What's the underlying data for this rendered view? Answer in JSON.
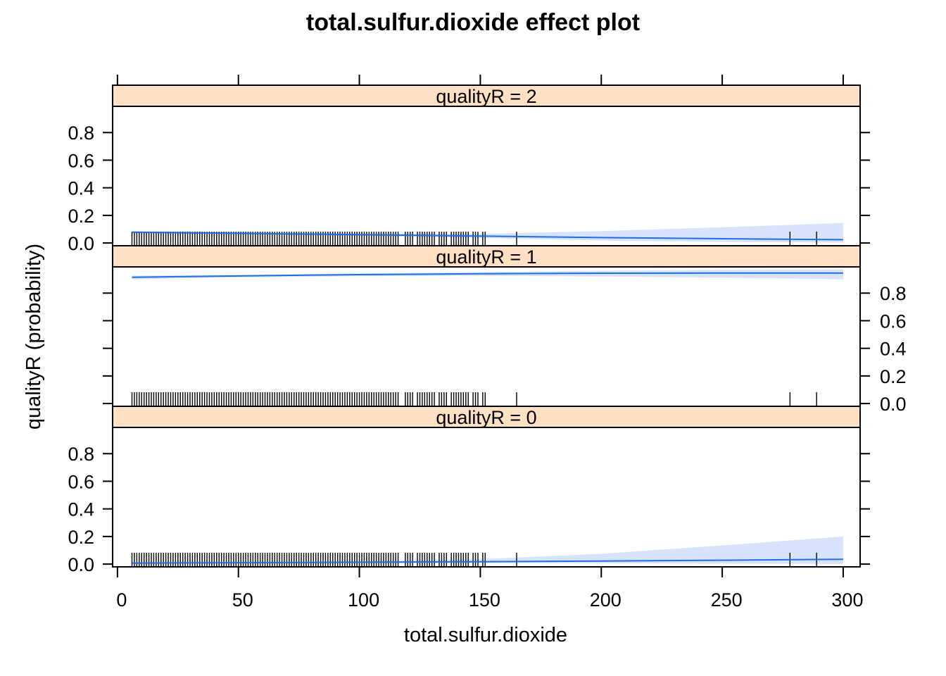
{
  "chart_data": {
    "type": "line",
    "title": "total.sulfur.dioxide effect plot",
    "xlabel": "total.sulfur.dioxide",
    "ylabel": "qualityR (probability)",
    "xlim": [
      -2,
      307
    ],
    "ylim": [
      -0.02,
      0.99
    ],
    "x_ticks": [
      0,
      50,
      100,
      150,
      200,
      250,
      300
    ],
    "x_tick_labels": [
      "0",
      "50",
      "100",
      "150",
      "200",
      "250",
      "300"
    ],
    "y_ticks": [
      0,
      0.2,
      0.4,
      0.6,
      0.8
    ],
    "y_tick_labels": [
      "0.0",
      "0.2",
      "0.4",
      "0.6",
      "0.8"
    ],
    "colors": {
      "line": "#1f6fe0",
      "band": "#d6e3fb",
      "strip": "#ffe0c4",
      "axis": "#000000"
    },
    "panels": [
      {
        "strip": "qualityR = 2",
        "y_label_side": "left",
        "x": [
          6,
          50,
          100,
          150,
          200,
          250,
          300
        ],
        "fit": [
          0.078,
          0.07,
          0.06,
          0.05,
          0.039,
          0.031,
          0.024
        ],
        "lower": [
          0.07,
          0.064,
          0.052,
          0.036,
          0.018,
          0.008,
          0.003
        ],
        "upper": [
          0.087,
          0.077,
          0.068,
          0.066,
          0.086,
          0.114,
          0.144
        ]
      },
      {
        "strip": "qualityR = 1",
        "y_label_side": "right",
        "x": [
          6,
          50,
          100,
          150,
          200,
          250,
          300
        ],
        "fit": [
          0.915,
          0.924,
          0.934,
          0.94,
          0.944,
          0.945,
          0.945
        ],
        "lower": [
          0.9,
          0.914,
          0.922,
          0.925,
          0.92,
          0.912,
          0.9
        ],
        "upper": [
          0.927,
          0.932,
          0.942,
          0.952,
          0.962,
          0.968,
          0.972
        ]
      },
      {
        "strip": "qualityR = 0",
        "y_label_side": "left",
        "x": [
          6,
          50,
          100,
          150,
          200,
          250,
          300
        ],
        "fit": [
          0.007,
          0.01,
          0.013,
          0.017,
          0.022,
          0.028,
          0.035
        ],
        "lower": [
          0.004,
          0.006,
          0.008,
          0.009,
          0.006,
          0.003,
          0.001
        ],
        "upper": [
          0.011,
          0.014,
          0.02,
          0.035,
          0.075,
          0.135,
          0.2
        ]
      }
    ],
    "rug": [
      6,
      7,
      8,
      9,
      10,
      11,
      12,
      13,
      14,
      15,
      16,
      17,
      18,
      19,
      20,
      21,
      22,
      23,
      24,
      25,
      26,
      27,
      28,
      29,
      30,
      31,
      32,
      33,
      34,
      35,
      36,
      37,
      38,
      39,
      40,
      41,
      42,
      43,
      44,
      45,
      46,
      47,
      48,
      49,
      50,
      51,
      52,
      53,
      54,
      55,
      56,
      57,
      58,
      59,
      60,
      61,
      62,
      63,
      64,
      65,
      66,
      67,
      68,
      69,
      70,
      71,
      72,
      73,
      74,
      75,
      76,
      77,
      78,
      79,
      80,
      81,
      82,
      83,
      84,
      85,
      86,
      87,
      88,
      89,
      90,
      91,
      92,
      93,
      94,
      95,
      96,
      97,
      98,
      99,
      100,
      101,
      102,
      103,
      104,
      105,
      106,
      107,
      108,
      109,
      110,
      111,
      112,
      113,
      114,
      115,
      116,
      119,
      120,
      121,
      122,
      124,
      125,
      126,
      127,
      128,
      129,
      130,
      131,
      133,
      134,
      135,
      136,
      138,
      139,
      140,
      141,
      142,
      143,
      144,
      145,
      147,
      148,
      149,
      151,
      152,
      165,
      278,
      289
    ]
  }
}
